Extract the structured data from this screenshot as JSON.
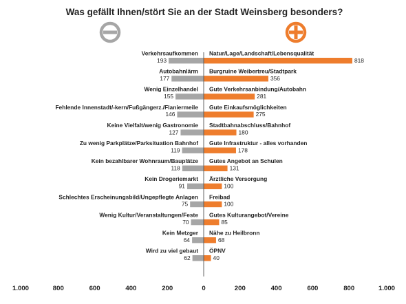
{
  "chart_data": {
    "type": "bar",
    "title": "Was gefällt Ihnen/stört Sie an der Stadt Weinsberg besonders?",
    "colors": {
      "negative": "#a6a6a6",
      "positive": "#ee7d2d",
      "axis": "#555555"
    },
    "legend": [
      {
        "series": "negative",
        "icon": "minus-circle-icon",
        "color": "#a6a6a6"
      },
      {
        "series": "positive",
        "icon": "plus-circle-icon",
        "color": "#ee7d2d"
      }
    ],
    "xlim": [
      -1000,
      1000
    ],
    "xticks": [
      {
        "value": -1000,
        "label": "1.000"
      },
      {
        "value": -800,
        "label": "800"
      },
      {
        "value": -600,
        "label": "600"
      },
      {
        "value": -400,
        "label": "400"
      },
      {
        "value": -200,
        "label": "200"
      },
      {
        "value": 0,
        "label": "0"
      },
      {
        "value": 200,
        "label": "200"
      },
      {
        "value": 400,
        "label": "400"
      },
      {
        "value": 600,
        "label": "600"
      },
      {
        "value": 800,
        "label": "800"
      },
      {
        "value": 1000,
        "label": "1.000"
      }
    ],
    "rows": [
      {
        "neg_label": "Verkehrsaufkommen",
        "neg_value": 193,
        "pos_label": "Natur/Lage/Landschaft/Lebensqualität",
        "pos_value": 818
      },
      {
        "neg_label": "Autobahnlärm",
        "neg_value": 177,
        "pos_label": "Burgruine Weibertreu/Stadtpark",
        "pos_value": 356
      },
      {
        "neg_label": "Wenig Einzelhandel",
        "neg_value": 155,
        "pos_label": "Gute Verkehrsanbindung/Autobahn",
        "pos_value": 281
      },
      {
        "neg_label": "Fehlende Innenstadt/-kern/Fußgängerz./Flaniermeile",
        "neg_value": 146,
        "pos_label": "Gute Einkaufsmöglichkeiten",
        "pos_value": 275
      },
      {
        "neg_label": "Keine Vielfalt/wenig Gastronomie",
        "neg_value": 127,
        "pos_label": "Stadtbahnabschluss/Bahnhof",
        "pos_value": 180
      },
      {
        "neg_label": "Zu wenig Parkplätze/Parksituation Bahnhof",
        "neg_value": 119,
        "pos_label": "Gute Infrastruktur - alles vorhanden",
        "pos_value": 178
      },
      {
        "neg_label": "Kein bezahlbarer Wohnraum/Bauplätze",
        "neg_value": 118,
        "pos_label": "Gutes Angebot an Schulen",
        "pos_value": 131
      },
      {
        "neg_label": "Kein Drogeriemarkt",
        "neg_value": 91,
        "pos_label": "Ärztliche Versorgung",
        "pos_value": 100
      },
      {
        "neg_label": "Schlechtes Erscheinungsbild/Ungepflegte Anlagen",
        "neg_value": 75,
        "pos_label": "Freibad",
        "pos_value": 100
      },
      {
        "neg_label": "Wenig Kultur/Veranstaltungen/Feste",
        "neg_value": 70,
        "pos_label": "Gutes Kulturangebot/Vereine",
        "pos_value": 85
      },
      {
        "neg_label": "Kein Metzger",
        "neg_value": 64,
        "pos_label": "Nähe zu Heilbronn",
        "pos_value": 68
      },
      {
        "neg_label": "Wird zu viel gebaut",
        "neg_value": 62,
        "pos_label": "ÖPNV",
        "pos_value": 40
      }
    ]
  }
}
